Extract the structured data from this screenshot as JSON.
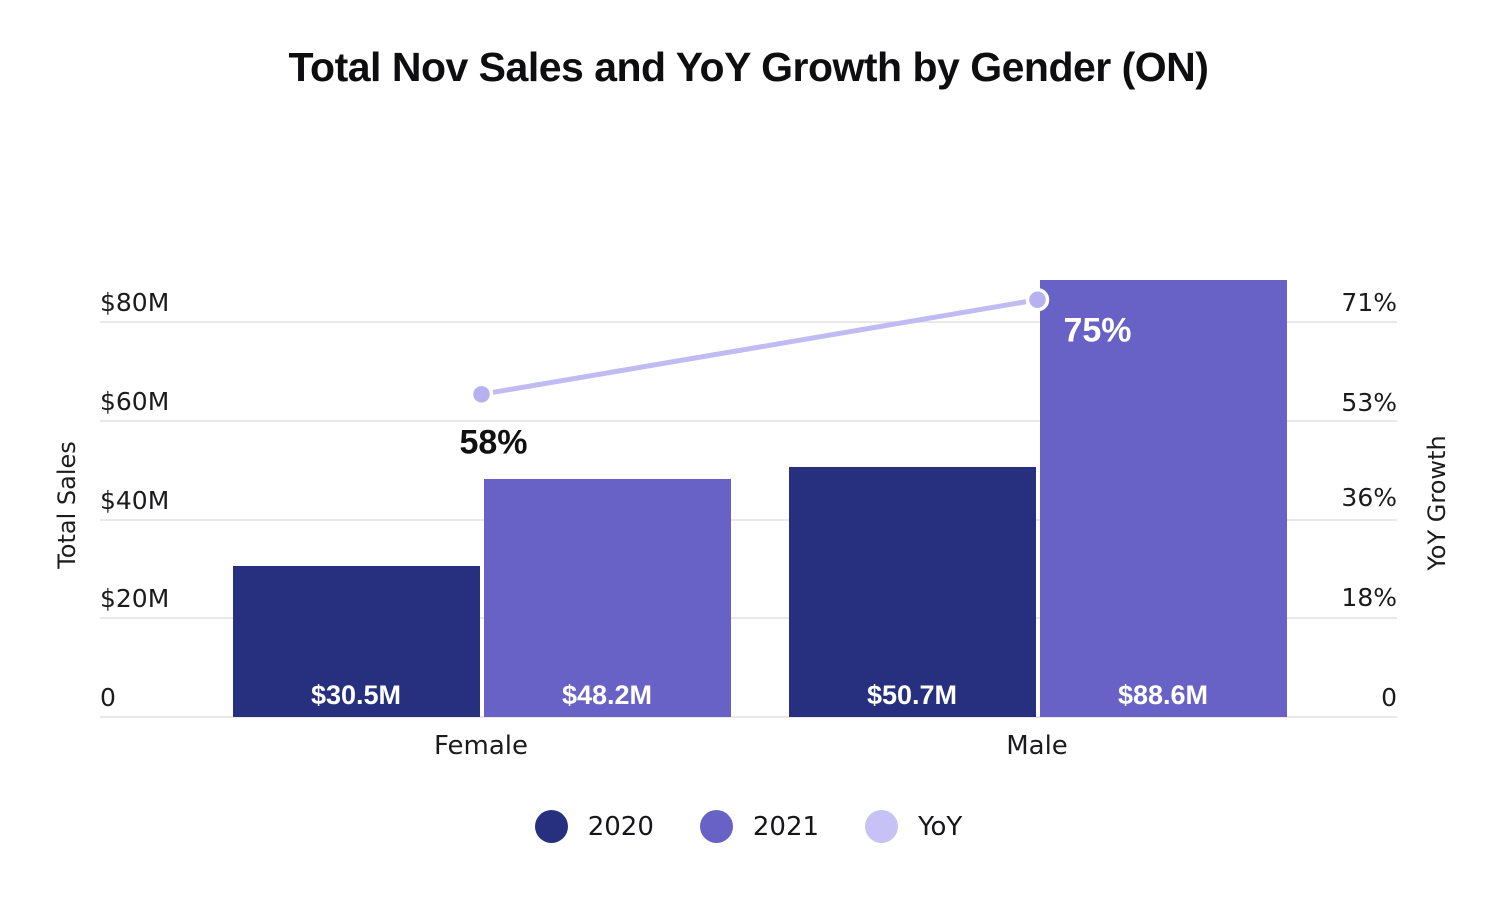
{
  "title": "Total Nov Sales and YoY Growth by Gender (ON)",
  "chart_data": {
    "type": "bar+line dual-axis combo",
    "title": "Total Nov Sales and YoY Growth by Gender (ON)",
    "categories": [
      "Female",
      "Male"
    ],
    "bar_series": [
      {
        "name": "2020",
        "color": "#26307e",
        "values_millions": [
          30.5,
          50.7
        ],
        "labels": [
          "$30.5M",
          "$50.7M"
        ]
      },
      {
        "name": "2021",
        "color": "#6862c6",
        "values_millions": [
          48.2,
          88.6
        ],
        "labels": [
          "$48.2M",
          "$88.6M"
        ]
      }
    ],
    "line_series": {
      "name": "YoY",
      "color": "#c0bbf3",
      "marker_color": "#b7b1f0",
      "marker_border": "#ffffff",
      "values_percent": [
        58,
        75
      ],
      "labels": [
        "58%",
        "75%"
      ]
    },
    "left_axis": {
      "title": "Total Sales",
      "range_millions": [
        0,
        80
      ],
      "ticks": [
        {
          "value": 80,
          "label": "$80M"
        },
        {
          "value": 60,
          "label": "$60M"
        },
        {
          "value": 40,
          "label": "$40M"
        },
        {
          "value": 20,
          "label": "$20M"
        },
        {
          "value": 0,
          "label": "0"
        }
      ]
    },
    "right_axis": {
      "title": "YoY Growth",
      "range_percent": [
        0,
        71
      ],
      "ticks": [
        {
          "value": 71,
          "label": "71%"
        },
        {
          "value": 53,
          "label": "53%"
        },
        {
          "value": 36,
          "label": "36%"
        },
        {
          "value": 18,
          "label": "18%"
        },
        {
          "value": 0,
          "label": "0"
        }
      ]
    },
    "grid": "horizontal",
    "legend_position": "bottom"
  },
  "legend": {
    "items": [
      {
        "label": "2020",
        "color": "#26307e"
      },
      {
        "label": "2021",
        "color": "#6862c6"
      },
      {
        "label": "YoY",
        "color": "#c6c2f5"
      }
    ]
  },
  "colors": {
    "background": "#ffffff",
    "gridline": "#e9e9ea",
    "title_text": "#0e0e10",
    "tick_text": "#1b1b1e",
    "bar_value_text": "#ffffff",
    "point_label_female": "#111111",
    "point_label_male": "#ffffff"
  }
}
